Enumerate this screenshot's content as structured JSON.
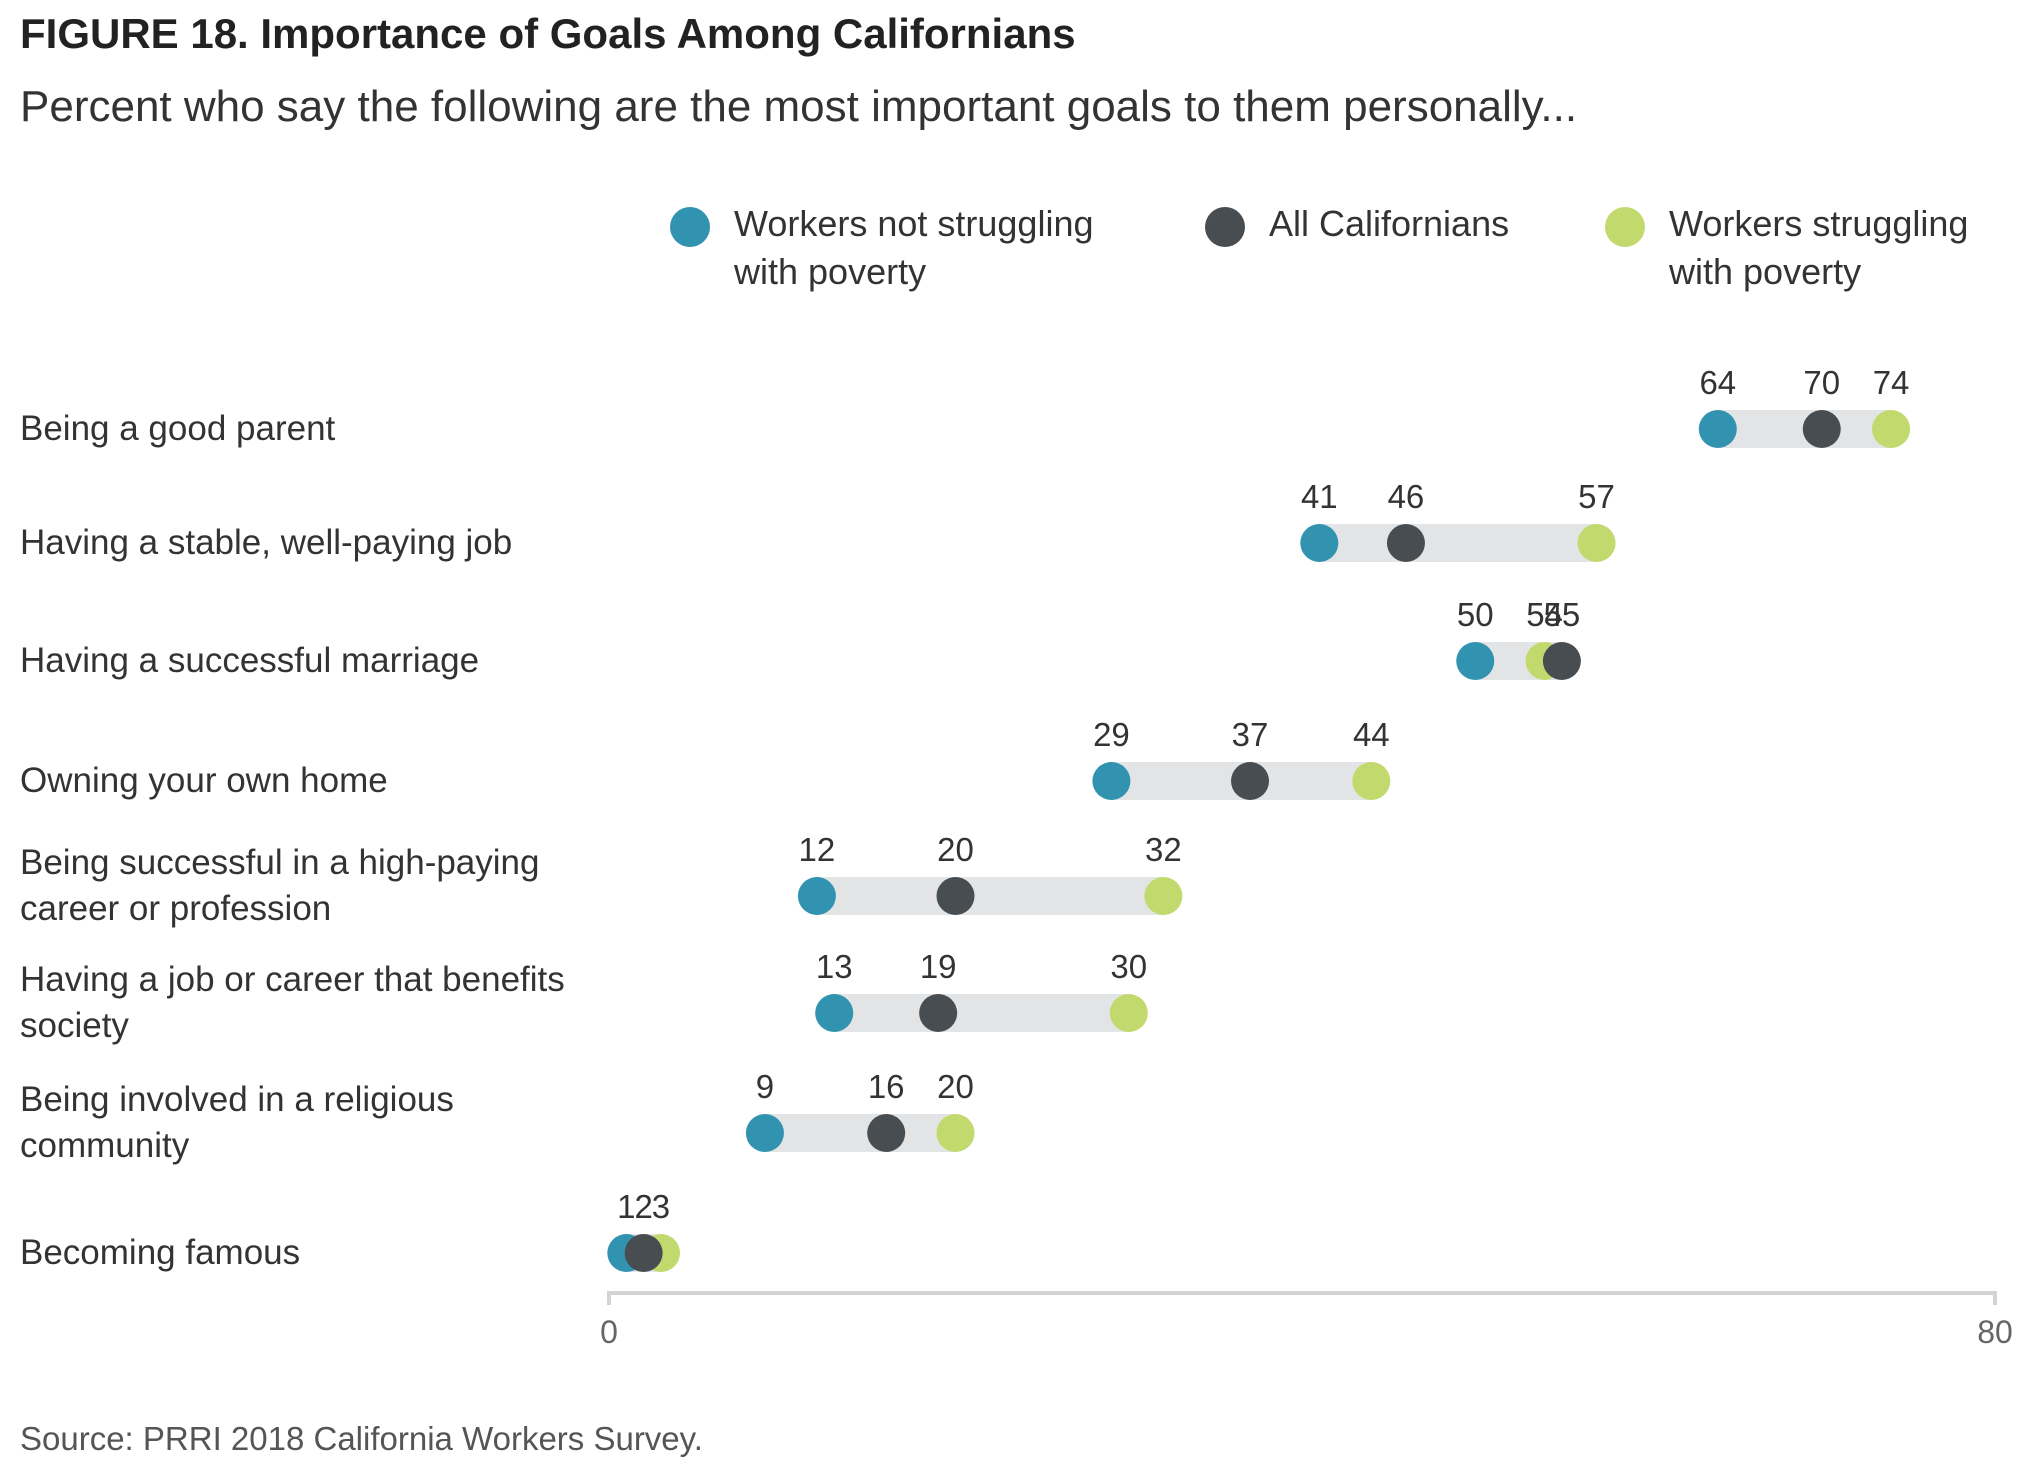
{
  "title": "FIGURE 18. Importance of Goals Among Californians",
  "subtitle": "Percent who say the following are the most important goals to them personally...",
  "source": "Source: PRRI 2018 California Workers Survey.",
  "colors": {
    "not_struggling": "#3193b0",
    "all": "#474d51",
    "struggling": "#c2da6d",
    "track": "#e3e4e5",
    "axis": "#d3d3d3"
  },
  "legend": [
    {
      "name": "Workers not struggling with poverty",
      "color": "#3193b0"
    },
    {
      "name": "All Californians",
      "color": "#474d51"
    },
    {
      "name": "Workers struggling with poverty",
      "color": "#c2da6d"
    }
  ],
  "chart_data": {
    "type": "dot",
    "xlim": [
      0,
      80
    ],
    "x_ticks": [
      "0",
      "80"
    ],
    "categories": [
      "Being a good parent",
      "Having a stable, well-paying job",
      "Having a successful marriage",
      "Owning your own home",
      "Being successful in a high-paying career or profession",
      "Having a job or career that benefits society",
      "Being involved in a religious community",
      "Becoming famous"
    ],
    "series": [
      {
        "name": "Workers not struggling with poverty",
        "values": [
          64,
          41,
          50,
          29,
          12,
          13,
          9,
          1
        ]
      },
      {
        "name": "All Californians",
        "values": [
          70,
          46,
          55,
          37,
          20,
          19,
          16,
          2
        ]
      },
      {
        "name": "Workers struggling with poverty",
        "values": [
          74,
          57,
          54,
          44,
          32,
          30,
          20,
          3
        ]
      }
    ],
    "legend_position": "top",
    "grid": false
  }
}
